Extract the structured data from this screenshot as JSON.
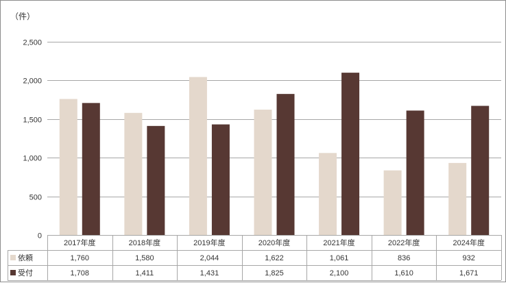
{
  "chart_data": {
    "type": "bar",
    "unit_label": "（件）",
    "categories": [
      "2017年度",
      "2018年度",
      "2019年度",
      "2020年度",
      "2021年度",
      "2022年度",
      "2024年度"
    ],
    "series": [
      {
        "name": "依頼",
        "color": "#e4d8cc",
        "values": [
          1760,
          1580,
          2044,
          1622,
          1061,
          836,
          932
        ],
        "labels": [
          "1,760",
          "1,580",
          "2,044",
          "1,622",
          "1,061",
          "836",
          "932"
        ]
      },
      {
        "name": "受付",
        "color": "#573833",
        "values": [
          1708,
          1411,
          1431,
          1825,
          2100,
          1610,
          1671
        ],
        "labels": [
          "1,708",
          "1,411",
          "1,431",
          "1,825",
          "2,100",
          "1,610",
          "1,671"
        ]
      }
    ],
    "ylim": [
      0,
      2500
    ],
    "yticks": [
      0,
      500,
      1000,
      1500,
      2000,
      2500
    ],
    "ytick_labels": [
      "0",
      "500",
      "1,000",
      "1,500",
      "2,000",
      "2,500"
    ],
    "grid": true,
    "legend": "data-table"
  }
}
